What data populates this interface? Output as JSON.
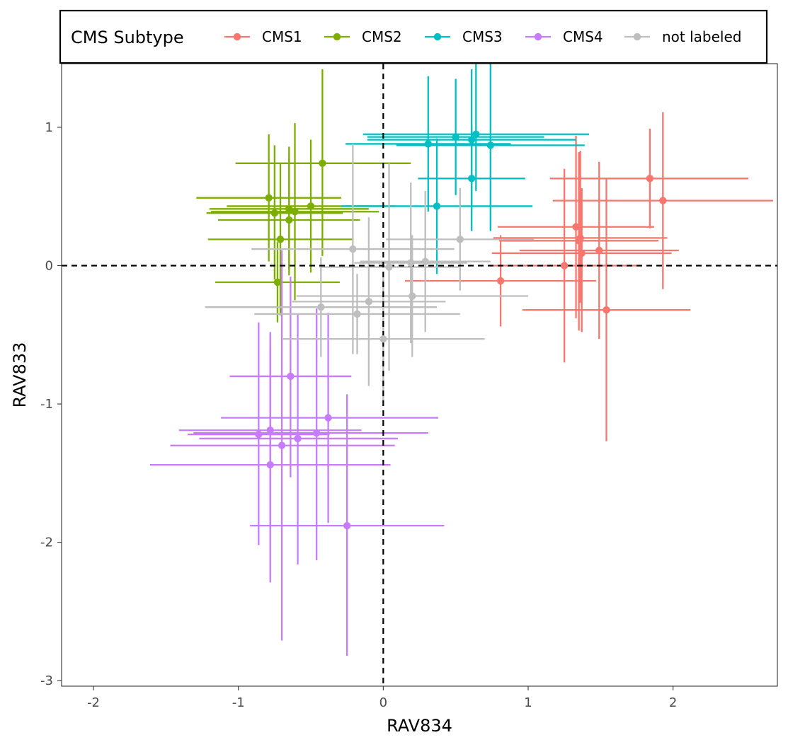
{
  "chart_data": {
    "type": "scatter",
    "title": "",
    "xlabel": "RAV834",
    "ylabel": "RAV833",
    "xlim": [
      -2.22,
      2.72
    ],
    "ylim": [
      -3.04,
      1.46
    ],
    "x_ticks": [
      -2,
      -1,
      0,
      1,
      2
    ],
    "y_ticks": [
      -3,
      -2,
      -1,
      0,
      1
    ],
    "reference_lines": {
      "x": 0,
      "y": 0,
      "style": "dashed"
    },
    "grid": false,
    "error_bars": "horizontal and vertical",
    "legend": {
      "title": "CMS Subtype",
      "position": "top"
    },
    "series": [
      {
        "name": "CMS1",
        "color": "#F8766D",
        "points": [
          {
            "x": 1.84,
            "y": 0.63,
            "xmin": 1.15,
            "xmax": 2.52,
            "ymin": 0.27,
            "ymax": 0.99
          },
          {
            "x": 1.93,
            "y": 0.47,
            "xmin": 1.17,
            "xmax": 2.69,
            "ymin": -0.17,
            "ymax": 1.11
          },
          {
            "x": 1.33,
            "y": 0.28,
            "xmin": 0.79,
            "xmax": 1.87,
            "ymin": -0.38,
            "ymax": 0.94
          },
          {
            "x": 1.36,
            "y": 0.2,
            "xmin": 0.76,
            "xmax": 1.96,
            "ymin": -0.27,
            "ymax": 0.83
          },
          {
            "x": 1.35,
            "y": 0.18,
            "xmin": 0.8,
            "xmax": 1.9,
            "ymin": -0.47,
            "ymax": 0.82
          },
          {
            "x": 1.49,
            "y": 0.11,
            "xmin": 0.94,
            "xmax": 2.04,
            "ymin": -0.53,
            "ymax": 0.75
          },
          {
            "x": 1.37,
            "y": 0.09,
            "xmin": 0.75,
            "xmax": 1.99,
            "ymin": -0.48,
            "ymax": 0.56
          },
          {
            "x": 1.25,
            "y": 0.0,
            "xmin": 0.73,
            "xmax": 1.77,
            "ymin": -0.7,
            "ymax": 0.7
          },
          {
            "x": 0.81,
            "y": -0.11,
            "xmin": 0.15,
            "xmax": 1.47,
            "ymin": -0.44,
            "ymax": 0.22
          },
          {
            "x": 1.54,
            "y": -0.32,
            "xmin": 0.96,
            "xmax": 2.12,
            "ymin": -1.27,
            "ymax": 0.63
          }
        ]
      },
      {
        "name": "CMS2",
        "color": "#7CAE00",
        "points": [
          {
            "x": -0.42,
            "y": 0.74,
            "xmin": -1.02,
            "xmax": 0.19,
            "ymin": 0.07,
            "ymax": 1.42
          },
          {
            "x": -0.79,
            "y": 0.49,
            "xmin": -1.29,
            "xmax": -0.29,
            "ymin": 0.03,
            "ymax": 0.95
          },
          {
            "x": -0.5,
            "y": 0.43,
            "xmin": -1.08,
            "xmax": 0.08,
            "ymin": -0.05,
            "ymax": 0.91
          },
          {
            "x": -0.65,
            "y": 0.41,
            "xmin": -1.2,
            "xmax": -0.1,
            "ymin": -0.03,
            "ymax": 0.86
          },
          {
            "x": -0.61,
            "y": 0.39,
            "xmin": -1.19,
            "xmax": -0.03,
            "ymin": -0.25,
            "ymax": 1.03
          },
          {
            "x": -0.75,
            "y": 0.38,
            "xmin": -1.22,
            "xmax": -0.28,
            "ymin": -0.1,
            "ymax": 0.87
          },
          {
            "x": -0.65,
            "y": 0.33,
            "xmin": -1.14,
            "xmax": -0.16,
            "ymin": -0.07,
            "ymax": 0.78
          },
          {
            "x": -0.71,
            "y": 0.19,
            "xmin": -1.21,
            "xmax": -0.21,
            "ymin": -0.36,
            "ymax": 0.74
          },
          {
            "x": -0.73,
            "y": -0.12,
            "xmin": -1.16,
            "xmax": -0.3,
            "ymin": -0.41,
            "ymax": 0.17
          }
        ]
      },
      {
        "name": "CMS3",
        "color": "#00BFC4",
        "points": [
          {
            "x": 0.64,
            "y": 0.95,
            "xmin": -0.14,
            "xmax": 1.42,
            "ymin": 0.54,
            "ymax": 1.46
          },
          {
            "x": 0.5,
            "y": 0.93,
            "xmin": -0.11,
            "xmax": 1.11,
            "ymin": 0.51,
            "ymax": 1.35
          },
          {
            "x": 0.61,
            "y": 0.91,
            "xmin": -0.11,
            "xmax": 1.33,
            "ymin": 0.4,
            "ymax": 1.42
          },
          {
            "x": 0.31,
            "y": 0.88,
            "xmin": -0.26,
            "xmax": 0.88,
            "ymin": 0.39,
            "ymax": 1.37
          },
          {
            "x": 0.74,
            "y": 0.87,
            "xmin": 0.09,
            "xmax": 1.39,
            "ymin": 0.25,
            "ymax": 1.46
          },
          {
            "x": 0.61,
            "y": 0.63,
            "xmin": 0.24,
            "xmax": 0.98,
            "ymin": 0.25,
            "ymax": 1.01
          },
          {
            "x": 0.37,
            "y": 0.43,
            "xmin": -0.29,
            "xmax": 1.03,
            "ymin": -0.06,
            "ymax": 0.92
          }
        ]
      },
      {
        "name": "CMS4",
        "color": "#C77CFF",
        "points": [
          {
            "x": -0.64,
            "y": -0.8,
            "xmin": -1.06,
            "xmax": -0.22,
            "ymin": -1.53,
            "ymax": -0.08
          },
          {
            "x": -0.38,
            "y": -1.1,
            "xmin": -1.12,
            "xmax": 0.38,
            "ymin": -1.86,
            "ymax": -0.34
          },
          {
            "x": -0.78,
            "y": -1.19,
            "xmin": -1.41,
            "xmax": -0.15,
            "ymin": -1.9,
            "ymax": -0.48
          },
          {
            "x": -0.86,
            "y": -1.22,
            "xmin": -1.35,
            "xmax": -0.37,
            "ymin": -2.02,
            "ymax": -0.41
          },
          {
            "x": -0.46,
            "y": -1.21,
            "xmin": -1.31,
            "xmax": 0.31,
            "ymin": -2.13,
            "ymax": -0.31
          },
          {
            "x": -0.59,
            "y": -1.25,
            "xmin": -1.27,
            "xmax": 0.1,
            "ymin": -2.16,
            "ymax": -0.35
          },
          {
            "x": -0.7,
            "y": -1.3,
            "xmin": -1.47,
            "xmax": 0.08,
            "ymin": -2.71,
            "ymax": 0.11
          },
          {
            "x": -0.78,
            "y": -1.44,
            "xmin": -1.61,
            "xmax": 0.05,
            "ymin": -2.29,
            "ymax": -0.59
          },
          {
            "x": -0.25,
            "y": -1.88,
            "xmin": -0.92,
            "xmax": 0.42,
            "ymin": -2.82,
            "ymax": -0.93
          }
        ]
      },
      {
        "name": "not labeled",
        "color": "#BEBEBE",
        "points": [
          {
            "x": 0.53,
            "y": 0.19,
            "xmin": 0.02,
            "xmax": 1.04,
            "ymin": -0.18,
            "ymax": 0.56
          },
          {
            "x": -0.21,
            "y": 0.12,
            "xmin": -0.91,
            "xmax": 0.49,
            "ymin": -0.64,
            "ymax": 0.88
          },
          {
            "x": 0.29,
            "y": 0.03,
            "xmin": -0.16,
            "xmax": 0.74,
            "ymin": -0.48,
            "ymax": 0.54
          },
          {
            "x": 0.19,
            "y": 0.02,
            "xmin": -0.2,
            "xmax": 0.58,
            "ymin": -0.56,
            "ymax": 0.6
          },
          {
            "x": 0.04,
            "y": -0.01,
            "xmin": -0.44,
            "xmax": 0.52,
            "ymin": -0.76,
            "ymax": 0.74
          },
          {
            "x": 0.2,
            "y": -0.22,
            "xmin": -0.6,
            "xmax": 1.0,
            "ymin": -0.66,
            "ymax": 0.22
          },
          {
            "x": -0.1,
            "y": -0.26,
            "xmin": -0.63,
            "xmax": 0.43,
            "ymin": -0.87,
            "ymax": 0.35
          },
          {
            "x": -0.43,
            "y": -0.3,
            "xmin": -1.23,
            "xmax": 0.37,
            "ymin": -0.66,
            "ymax": 0.06
          },
          {
            "x": -0.18,
            "y": -0.35,
            "xmin": -0.89,
            "xmax": 0.53,
            "ymin": -0.64,
            "ymax": -0.06
          },
          {
            "x": 0.0,
            "y": -0.53,
            "xmin": -0.7,
            "xmax": 0.7,
            "ymin": -0.98,
            "ymax": -0.08
          }
        ]
      }
    ]
  }
}
